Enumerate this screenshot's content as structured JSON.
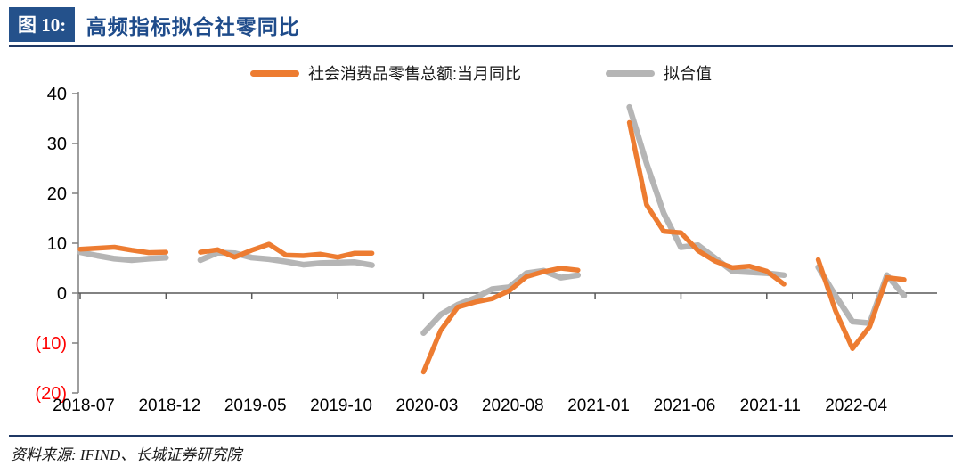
{
  "header": {
    "figure_label": "图 10:",
    "title": "高频指标拟合社零同比"
  },
  "footer": {
    "source": "资料来源: IFIND、长城证券研究院"
  },
  "colors": {
    "accent_blue": "#24518B",
    "rule_blue": "#1F3864",
    "retail_orange": "#ED7C31",
    "fitted_gray": "#B5B5B5",
    "axis_gray": "#7F7F7F",
    "zero_line": "#595959",
    "negative_tick_red": "#FF0000"
  },
  "chart_data": {
    "type": "line",
    "title": "高频指标拟合社零同比",
    "xlabel": "",
    "ylabel": "",
    "ylim": [
      -20,
      40
    ],
    "grid": false,
    "legend_position": "top-center",
    "x": [
      "2018-07",
      "2018-08",
      "2018-09",
      "2018-10",
      "2018-11",
      "2018-12",
      "2019-01",
      "2019-02",
      "2019-03",
      "2019-04",
      "2019-05",
      "2019-06",
      "2019-07",
      "2019-08",
      "2019-09",
      "2019-10",
      "2019-11",
      "2019-12",
      "2020-01",
      "2020-02",
      "2020-03",
      "2020-04",
      "2020-05",
      "2020-06",
      "2020-07",
      "2020-08",
      "2020-09",
      "2020-10",
      "2020-11",
      "2020-12",
      "2021-01",
      "2021-02",
      "2021-03",
      "2021-04",
      "2021-05",
      "2021-06",
      "2021-07",
      "2021-08",
      "2021-09",
      "2021-10",
      "2021-11",
      "2021-12",
      "2022-01",
      "2022-02",
      "2022-03",
      "2022-04",
      "2022-05",
      "2022-06",
      "2022-07"
    ],
    "xtick_every": 5,
    "xtick_labels": [
      "2018-07",
      "2018-12",
      "2019-05",
      "2019-10",
      "2020-03",
      "2020-08",
      "2021-01",
      "2021-06",
      "2021-11",
      "2022-04"
    ],
    "yticks": [
      {
        "label": "40",
        "value": 40,
        "color": "#000000"
      },
      {
        "label": "30",
        "value": 30,
        "color": "#000000"
      },
      {
        "label": "20",
        "value": 20,
        "color": "#000000"
      },
      {
        "label": "10",
        "value": 10,
        "color": "#000000"
      },
      {
        "label": "0",
        "value": 0,
        "color": "#000000"
      },
      {
        "label": "(10)",
        "value": -10,
        "color": "#FF0000"
      },
      {
        "label": "(20)",
        "value": -20,
        "color": "#FF0000"
      }
    ],
    "series": [
      {
        "name": "社会消费品零售总额:当月同比",
        "color": "#ED7C31",
        "width": 5.5,
        "values": [
          8.8,
          9.0,
          9.2,
          8.6,
          8.1,
          8.2,
          null,
          8.2,
          8.7,
          7.2,
          8.6,
          9.8,
          7.6,
          7.5,
          7.8,
          7.2,
          8.0,
          8.0,
          null,
          null,
          -15.8,
          -7.5,
          -2.8,
          -1.8,
          -1.1,
          0.5,
          3.3,
          4.3,
          5.0,
          4.6,
          null,
          null,
          34.2,
          17.7,
          12.4,
          12.1,
          8.5,
          6.4,
          5.1,
          5.4,
          4.4,
          1.8,
          null,
          6.7,
          -3.5,
          -11.1,
          -6.7,
          3.1,
          2.7
        ]
      },
      {
        "name": "拟合值",
        "color": "#B5B5B5",
        "width": 6.5,
        "values": [
          8.2,
          7.5,
          6.9,
          6.6,
          6.9,
          7.1,
          null,
          6.6,
          8.1,
          8.0,
          7.1,
          6.8,
          6.3,
          5.7,
          6.0,
          6.1,
          6.2,
          5.6,
          null,
          null,
          -8.0,
          -4.3,
          -2.3,
          -1.0,
          0.8,
          1.2,
          4.0,
          4.5,
          3.1,
          3.6,
          null,
          null,
          37.3,
          26.0,
          16.0,
          9.2,
          9.6,
          7.0,
          4.4,
          4.2,
          4.0,
          3.6,
          null,
          5.2,
          -0.5,
          -5.7,
          -6.0,
          3.6,
          -0.5
        ]
      }
    ]
  }
}
